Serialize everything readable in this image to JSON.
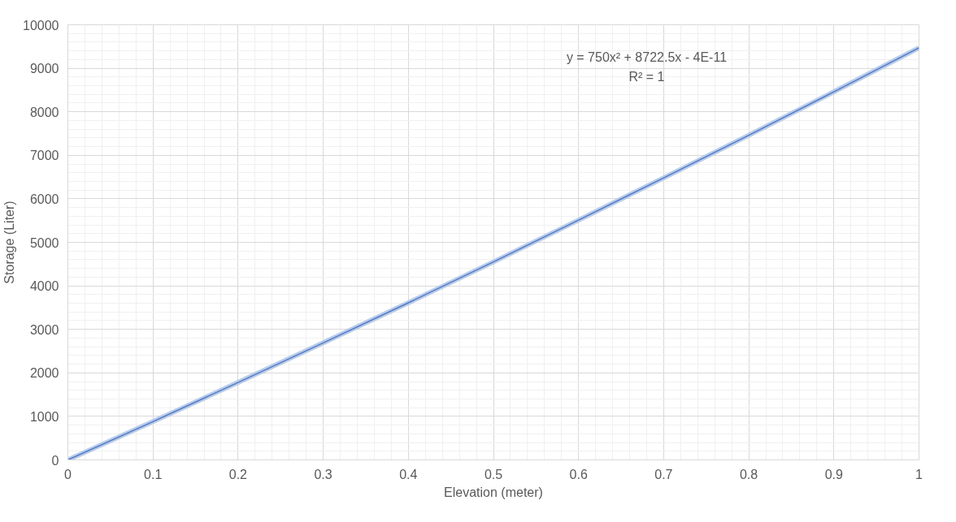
{
  "chart_data": {
    "type": "line",
    "xlabel": "Elevation (meter)",
    "ylabel": "Storage (Liter)",
    "x": [
      0,
      0.1,
      0.2,
      0.3,
      0.4,
      0.5,
      0.6,
      0.7,
      0.8,
      0.9,
      1
    ],
    "series": [
      {
        "color": "#b4c7e7",
        "values": [
          0,
          880,
          1780,
          2690,
          3610,
          4550,
          5510,
          6480,
          7460,
          8460,
          9470
        ]
      },
      {
        "color": "#4472c4",
        "values": [
          0,
          880,
          1780,
          2690,
          3610,
          4550,
          5510,
          6480,
          7460,
          8460,
          9470
        ]
      }
    ],
    "xlim": [
      0,
      1
    ],
    "ylim": [
      0,
      10000
    ],
    "xticks": [
      0,
      0.1,
      0.2,
      0.3,
      0.4,
      0.5,
      0.6,
      0.7,
      0.8,
      0.9,
      1
    ],
    "yticks": [
      0,
      1000,
      2000,
      3000,
      4000,
      5000,
      6000,
      7000,
      8000,
      9000,
      10000
    ],
    "grid": true,
    "marker": "none",
    "line_style": "solid",
    "annotations": [
      "y = 750x² + 8722.5x - 4E-11",
      "R² = 1"
    ]
  }
}
